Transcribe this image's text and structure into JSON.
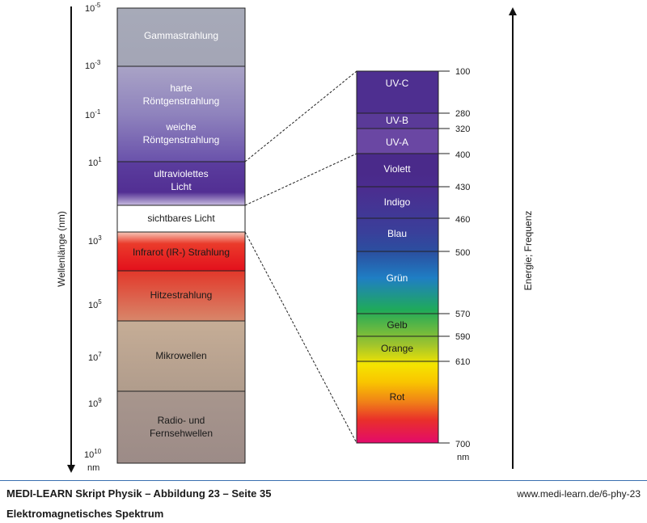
{
  "left_axis": {
    "title": "Wellenlänge (nm)",
    "ticks": [
      {
        "base": "10",
        "exp": "-5"
      },
      {
        "base": "10",
        "exp": "-3"
      },
      {
        "base": "10",
        "exp": "-1"
      },
      {
        "base": "10",
        "exp": "1"
      },
      {
        "base": "10",
        "exp": "3"
      },
      {
        "base": "10",
        "exp": "5"
      },
      {
        "base": "10",
        "exp": "7"
      },
      {
        "base": "10",
        "exp": "9"
      },
      {
        "base": "10",
        "exp": "10"
      }
    ],
    "unit": "nm"
  },
  "left_bands": [
    {
      "lines": [
        "Gammastrahlung"
      ]
    },
    {
      "lines": [
        "harte",
        "Röntgenstrahlung"
      ]
    },
    {
      "lines": [
        "weiche",
        "Röntgenstrahlung"
      ]
    },
    {
      "lines": [
        "ultraviolettes",
        "Licht"
      ]
    },
    {
      "lines": [
        "sichtbares Licht"
      ]
    },
    {
      "lines": [
        "Infrarot (IR-) Strahlung"
      ]
    },
    {
      "lines": [
        "Hitzestrahlung"
      ]
    },
    {
      "lines": [
        "Mikrowellen"
      ]
    },
    {
      "lines": [
        "Radio- und",
        "Fernsehwellen"
      ]
    }
  ],
  "right_bands": [
    {
      "label": "UV-C"
    },
    {
      "label": "UV-B"
    },
    {
      "label": "UV-A"
    },
    {
      "label": "Violett"
    },
    {
      "label": "Indigo"
    },
    {
      "label": "Blau"
    },
    {
      "label": "Grün"
    },
    {
      "label": "Gelb"
    },
    {
      "label": "Orange"
    },
    {
      "label": "Rot"
    }
  ],
  "right_ticks": [
    "100",
    "280",
    "320",
    "400",
    "430",
    "460",
    "500",
    "570",
    "590",
    "610",
    "700"
  ],
  "right_unit": "nm",
  "right_axis": {
    "title": "Energie;  Frequenz"
  },
  "footer": {
    "title": "MEDI-LEARN Skript Physik – Abbildung 23 – Seite 35",
    "subtitle": "Elektromagnetisches Spektrum",
    "url": "www.medi-learn.de/6-phy-23"
  }
}
